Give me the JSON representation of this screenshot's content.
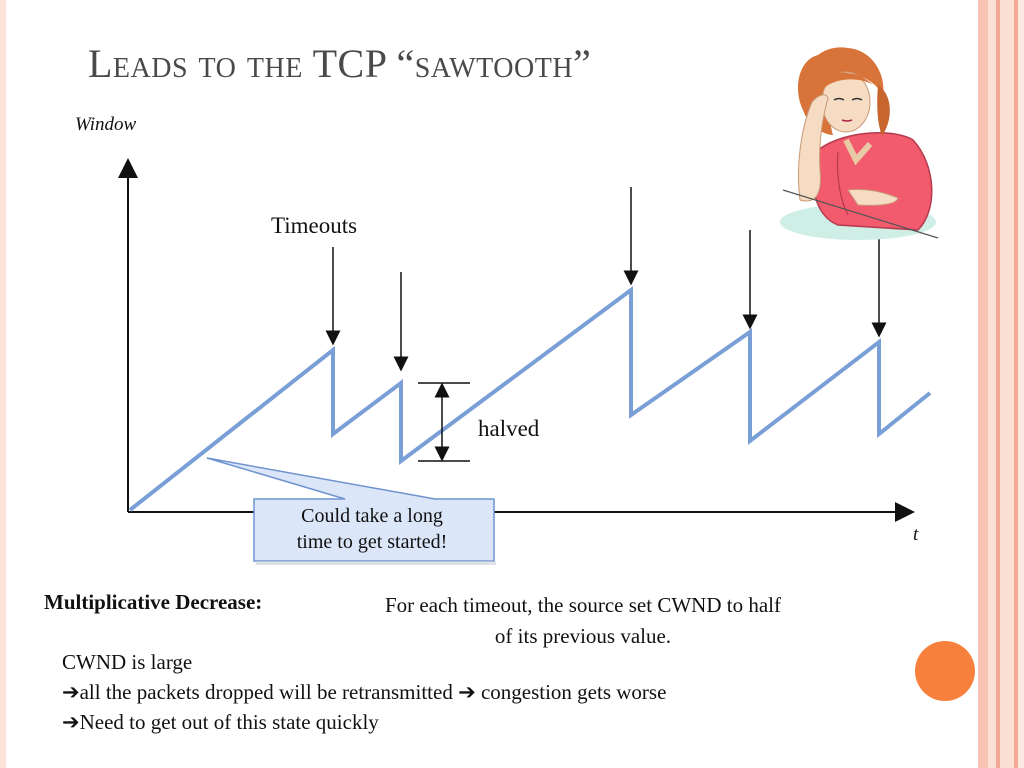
{
  "slide": {
    "title": "Leads to the TCP “sawtooth”",
    "accent_color": "#f7803d",
    "stripe_colors": [
      "#f7c4b3",
      "#fbe0d6",
      "#f3a993"
    ]
  },
  "diagram": {
    "y_axis_label": "Window",
    "x_axis_label": "t",
    "timeouts_label": "Timeouts",
    "halved_label": "halved",
    "callout_line1": "Could take a long",
    "callout_line2": "time to get started!",
    "line_color": "#7a9fd6"
  },
  "body": {
    "md_label": "Multiplicative Decrease:",
    "md_desc_line1": "For each timeout, the source set CWND to half",
    "md_desc_line2": "of its previous value.",
    "line1": "CWND is large",
    "line2_a": "all the packets dropped will be retransmitted ",
    "line2_b": " congestion gets worse",
    "line3": "Need to get out of this state quickly"
  },
  "illustration": {
    "icon": "thinking-woman-clipart"
  }
}
